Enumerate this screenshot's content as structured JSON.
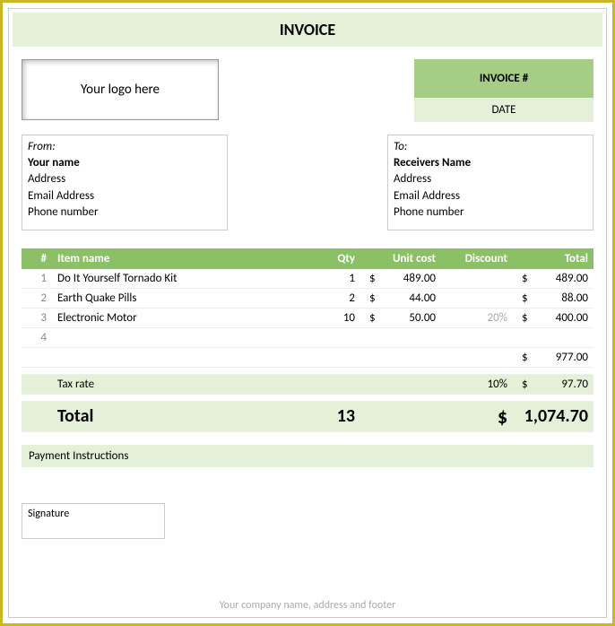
{
  "title": "INVOICE",
  "logo_placeholder": "Your logo here",
  "meta": {
    "invoice_num_label": "INVOICE #",
    "date_label": "DATE"
  },
  "from": {
    "label": "From:",
    "name": "Your name",
    "address": "Address",
    "email": "Email Address",
    "phone": "Phone number"
  },
  "to": {
    "label": "To:",
    "name": "Receivers Name",
    "address": "Address",
    "email": "Email Address",
    "phone": "Phone number"
  },
  "headers": {
    "num": "#",
    "item": "Item name",
    "qty": "Qty",
    "unit": "Unit cost",
    "discount": "Discount",
    "total": "Total"
  },
  "rows": [
    {
      "n": "1",
      "name": "Do It Yourself Tornado Kit",
      "qty": "1",
      "unit": "489.00",
      "discount": "",
      "total": "489.00"
    },
    {
      "n": "2",
      "name": "Earth Quake Pills",
      "qty": "2",
      "unit": "44.00",
      "discount": "",
      "total": "88.00"
    },
    {
      "n": "3",
      "name": "Electronic Motor",
      "qty": "10",
      "unit": "50.00",
      "discount": "20%",
      "total": "400.00"
    },
    {
      "n": "4",
      "name": "",
      "qty": "",
      "unit": "",
      "discount": "",
      "total": ""
    }
  ],
  "subtotal": "977.00",
  "tax": {
    "label": "Tax rate",
    "rate": "10%",
    "amount": "97.70"
  },
  "grand": {
    "label": "Total",
    "qty": "13",
    "amount": "1,074.70"
  },
  "payment_label": "Payment Instructions",
  "signature_label": "Signature",
  "footer": "Your company name, address and footer",
  "colors": {
    "header_green": "#8bc066",
    "light_green": "#e5f0d9",
    "mid_green": "#a5cd85",
    "border": "#cccccc",
    "outer": "#c9b826"
  }
}
